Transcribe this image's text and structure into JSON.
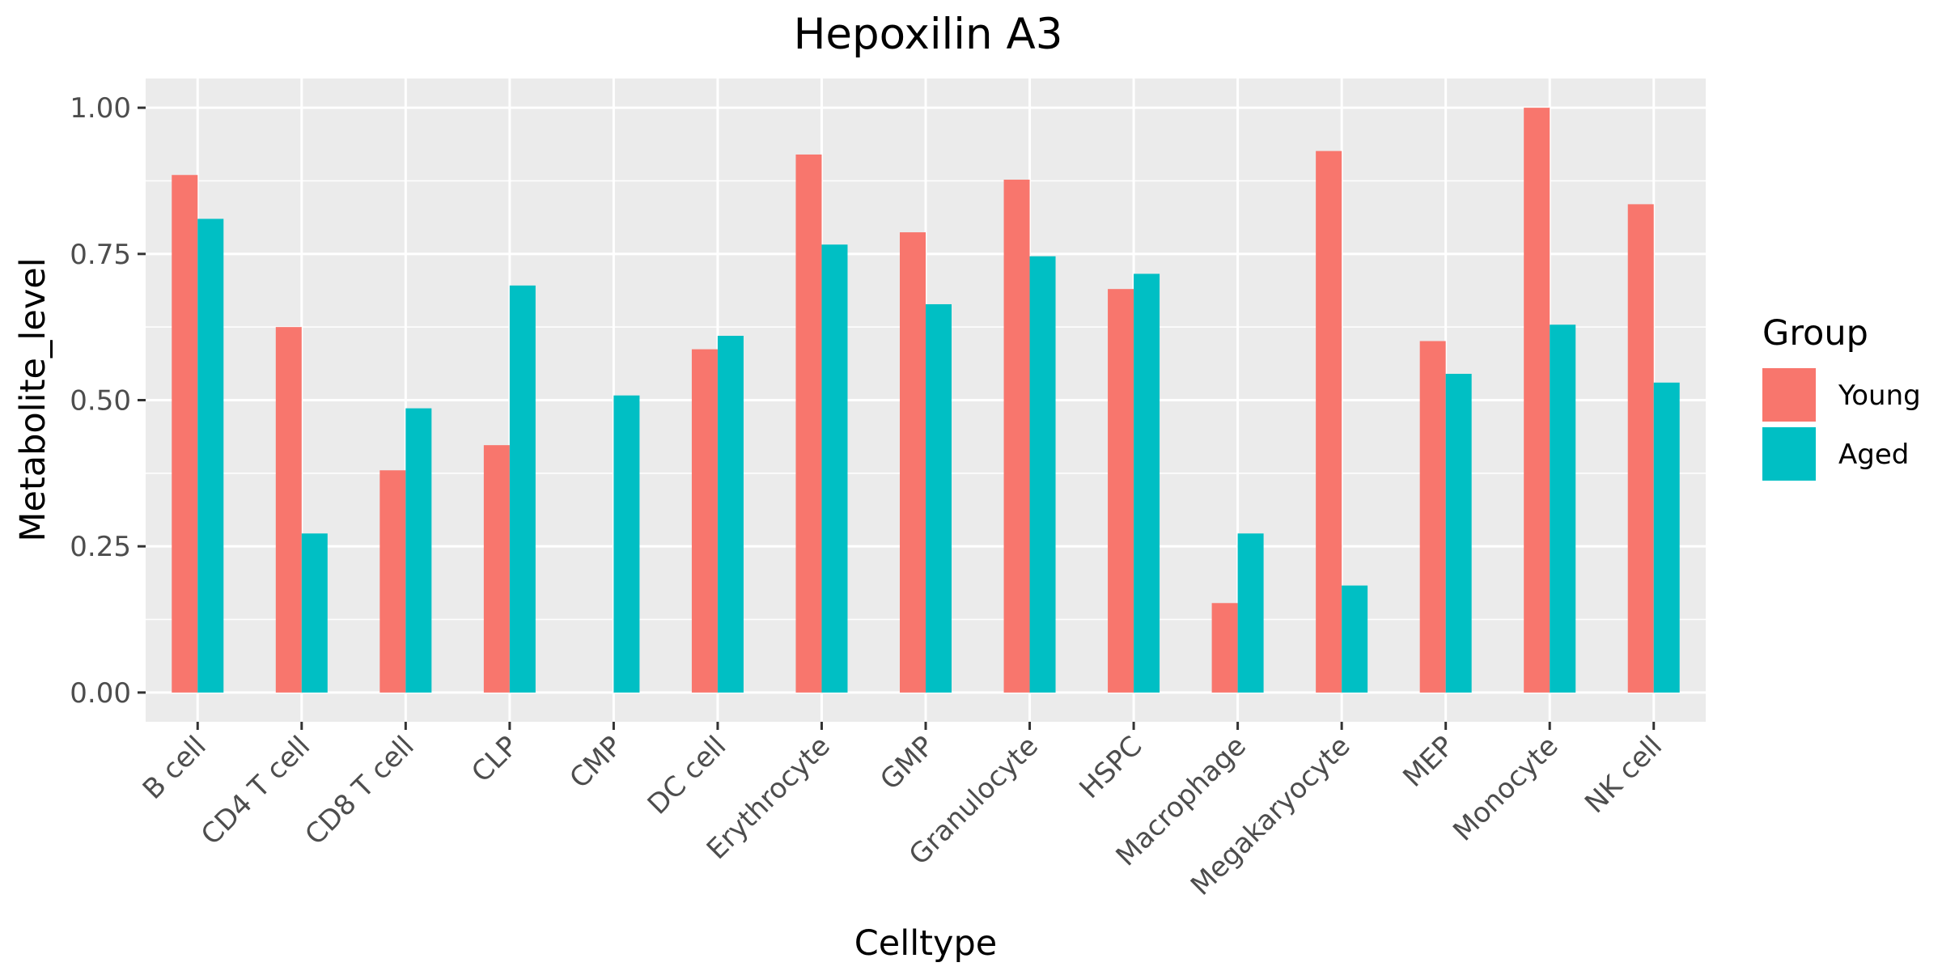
{
  "chart_data": {
    "type": "bar",
    "title": "Hepoxilin A3",
    "xlabel": "Celltype",
    "ylabel": "Metabolite_level",
    "ylim": [
      -0.05,
      1.05
    ],
    "yticks": [
      "0.00",
      "0.25",
      "0.50",
      "0.75",
      "1.00"
    ],
    "grid": true,
    "legend_title": "Group",
    "legend_position": "right",
    "categories": [
      "B cell",
      "CD4 T cell",
      "CD8 T cell",
      "CLP",
      "CMP",
      "DC cell",
      "Erythrocyte",
      "GMP",
      "Granulocyte",
      "HSPC",
      "Macrophage",
      "Megakaryocyte",
      "MEP",
      "Monocyte",
      "NK cell"
    ],
    "series": [
      {
        "name": "Young",
        "color": "#F8766D",
        "values": [
          0.885,
          0.625,
          0.38,
          0.423,
          0.0,
          0.587,
          0.92,
          0.787,
          0.877,
          0.69,
          0.153,
          0.926,
          0.601,
          1.0,
          0.835
        ]
      },
      {
        "name": "Aged",
        "color": "#00BFC4",
        "values": [
          0.81,
          0.272,
          0.486,
          0.696,
          0.508,
          0.61,
          0.766,
          0.664,
          0.746,
          0.716,
          0.272,
          0.183,
          0.545,
          0.629,
          0.53
        ]
      }
    ]
  }
}
